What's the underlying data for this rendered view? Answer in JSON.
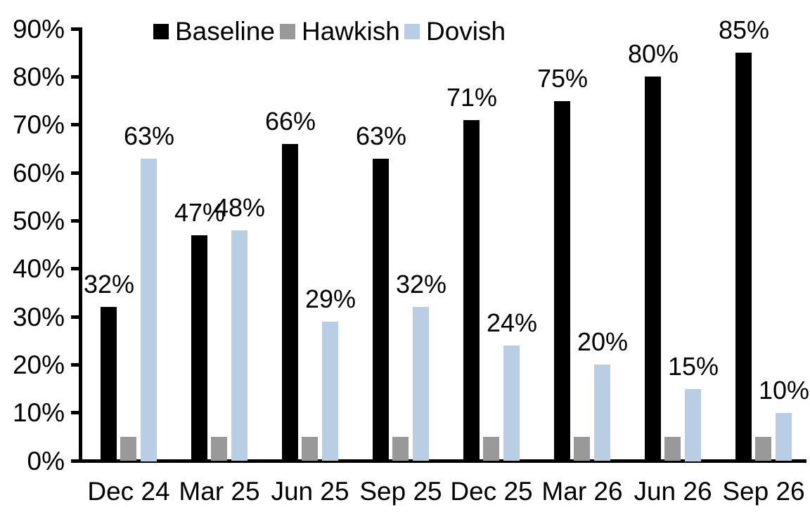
{
  "chart_data": {
    "type": "bar",
    "title": "",
    "categories": [
      "Dec 24",
      "Mar 25",
      "Jun 25",
      "Sep 25",
      "Dec 25",
      "Mar 26",
      "Jun 26",
      "Sep 26"
    ],
    "series": [
      {
        "name": "Baseline",
        "color": "#000000",
        "values": [
          32,
          47,
          66,
          63,
          71,
          75,
          80,
          85
        ],
        "data_labels_shown": true
      },
      {
        "name": "Hawkish",
        "color": "#999999",
        "values": [
          5,
          5,
          5,
          5,
          5,
          5,
          5,
          5
        ],
        "data_labels_shown": false
      },
      {
        "name": "Dovish",
        "color": "#B9CDE4",
        "values": [
          63,
          48,
          29,
          32,
          24,
          20,
          15,
          10
        ],
        "data_labels_shown": true
      }
    ],
    "value_suffix": "%",
    "xlabel": "",
    "ylabel": "",
    "ylim": [
      0,
      90
    ],
    "y_tick_step": 10,
    "y_tick_labels": [
      "0%",
      "10%",
      "20%",
      "30%",
      "40%",
      "50%",
      "60%",
      "70%",
      "80%",
      "90%"
    ],
    "grid": false,
    "legend_position": "top",
    "background": "#ffffff",
    "text_color": "#000000"
  }
}
